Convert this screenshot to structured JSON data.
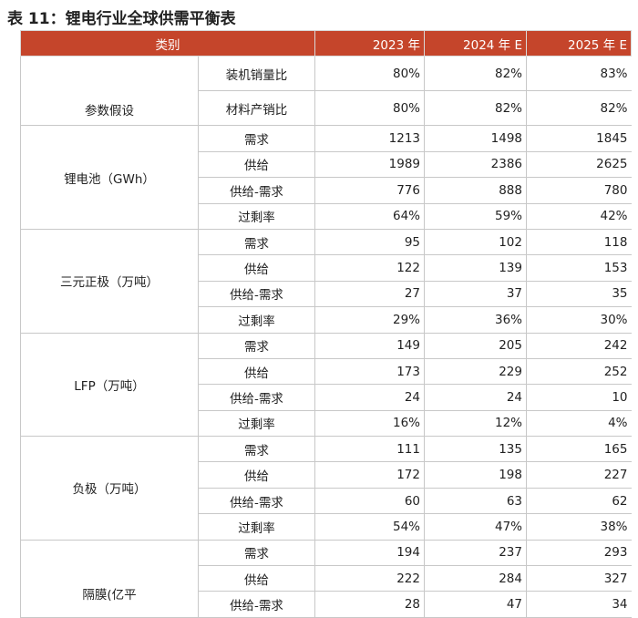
{
  "header": {
    "title": "表 11：锂电行业全球供需平衡表"
  },
  "table": {
    "columns": [
      "类别",
      "2023 年",
      "2024 年 E",
      "2025 年 E"
    ],
    "groups": [
      {
        "label": "参数假设",
        "rows": [
          [
            "装机销量比",
            "80%",
            "82%",
            "83%"
          ],
          [
            "材料产销比",
            "80%",
            "82%",
            "82%"
          ]
        ]
      },
      {
        "label": "锂电池（GWh）",
        "rows": [
          [
            "需求",
            "1213",
            "1498",
            "1845"
          ],
          [
            "供给",
            "1989",
            "2386",
            "2625"
          ],
          [
            "供给-需求",
            "776",
            "888",
            "780"
          ],
          [
            "过剩率",
            "64%",
            "59%",
            "42%"
          ]
        ]
      },
      {
        "label": "三元正极（万吨）",
        "rows": [
          [
            "需求",
            "95",
            "102",
            "118"
          ],
          [
            "供给",
            "122",
            "139",
            "153"
          ],
          [
            "供给-需求",
            "27",
            "37",
            "35"
          ],
          [
            "过剩率",
            "29%",
            "36%",
            "30%"
          ]
        ]
      },
      {
        "label": "LFP（万吨）",
        "rows": [
          [
            "需求",
            "149",
            "205",
            "242"
          ],
          [
            "供给",
            "173",
            "229",
            "252"
          ],
          [
            "供给-需求",
            "24",
            "24",
            "10"
          ],
          [
            "过剩率",
            "16%",
            "12%",
            "4%"
          ]
        ]
      },
      {
        "label": "负极（万吨）",
        "rows": [
          [
            "需求",
            "111",
            "135",
            "165"
          ],
          [
            "供给",
            "172",
            "198",
            "227"
          ],
          [
            "供给-需求",
            "60",
            "63",
            "62"
          ],
          [
            "过剩率",
            "54%",
            "47%",
            "38%"
          ]
        ]
      },
      {
        "label": "隔膜(亿平",
        "rows": [
          [
            "需求",
            "194",
            "237",
            "293"
          ],
          [
            "供给",
            "222",
            "284",
            "327"
          ],
          [
            "供给-需求",
            "28",
            "47",
            "34"
          ]
        ]
      }
    ]
  }
}
